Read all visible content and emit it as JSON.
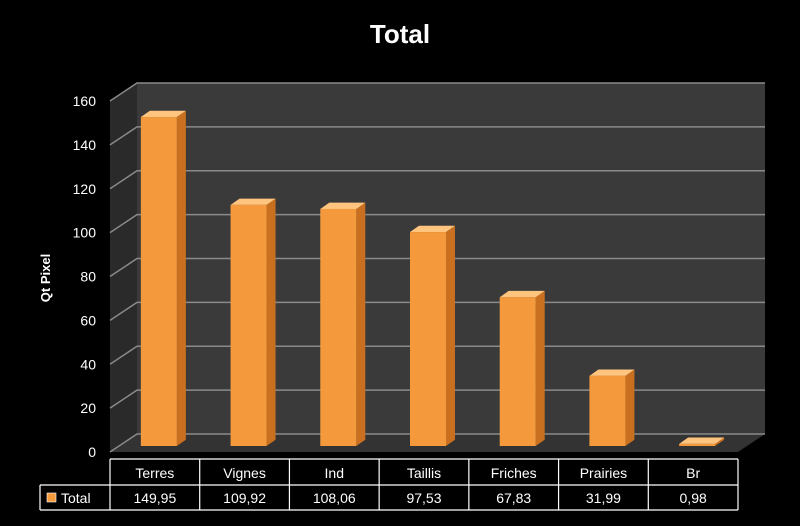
{
  "chart_data": {
    "type": "bar",
    "title": "Total",
    "ylabel": "Qt Pixel",
    "xlabel": "",
    "ylim": [
      0,
      160
    ],
    "yticks": [
      0,
      20,
      40,
      60,
      80,
      100,
      120,
      140,
      160
    ],
    "grid": true,
    "categories": [
      "Terres",
      "Vignes",
      "Ind",
      "Taillis",
      "Friches",
      "Prairies",
      "Br"
    ],
    "series": [
      {
        "name": "Total",
        "color": "#f59a3c",
        "values": [
          149.95,
          109.92,
          108.06,
          97.53,
          67.83,
          31.99,
          0.98
        ],
        "labels": [
          "149,95",
          "109,92",
          "108,06",
          "97,53",
          "67,83",
          "31,99",
          "0,98"
        ]
      }
    ],
    "legend": "data-table"
  },
  "colors": {
    "background": "#000000",
    "plot_back": "#3a3a3a",
    "plot_side": "#2a2a2a",
    "floor": "#333333",
    "grid": "#8a8a8a",
    "bar_front": "#f59a3c",
    "bar_side": "#c8701f",
    "bar_top": "#ffc47e"
  }
}
